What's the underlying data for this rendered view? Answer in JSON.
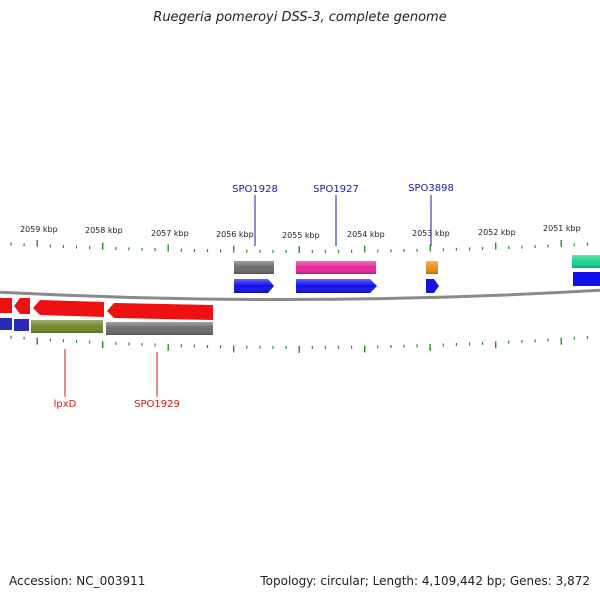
{
  "title": "Ruegeria pomeroyi DSS-3, complete genome",
  "footer": {
    "accession": "Accession: NC_003911",
    "summary": "Topology: circular; Length: 4,109,442 bp; Genes: 3,872"
  },
  "colors": {
    "backbone": "#8a8a8a",
    "tick": "#2e8b2e",
    "top_label": "#1a1aa8",
    "bottom_label": "#cc1a1a"
  },
  "kbp_labels": [
    "2059 kbp",
    "2058 kbp",
    "2057 kbp",
    "2056 kbp",
    "2055 kbp",
    "2054 kbp",
    "2053 kbp",
    "2052 kbp",
    "2051 kbp"
  ],
  "features": {
    "top": [
      {
        "label": "SPO1928",
        "color": "#1a1aa8"
      },
      {
        "label": "SPO1927",
        "color": "#1a1aa8"
      },
      {
        "label": "SPO3898",
        "color": "#1a1aa8"
      }
    ],
    "bottom": [
      {
        "label": "lpxD",
        "color": "#cc1a1a"
      },
      {
        "label": "SPO1929",
        "color": "#cc1a1a"
      }
    ]
  }
}
